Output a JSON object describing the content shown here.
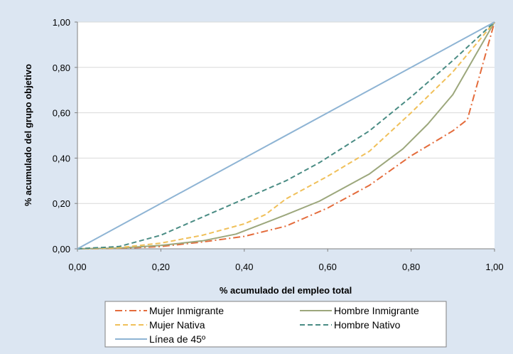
{
  "chart_data": {
    "type": "line",
    "title": "",
    "xlabel": "% acumulado del empleo total",
    "ylabel": "% acumulado del grupo objetivo",
    "xlim": [
      0,
      1
    ],
    "ylim": [
      0,
      1
    ],
    "x_ticks": [
      "0,00",
      "0,20",
      "0,40",
      "0,60",
      "0,80",
      "1,00"
    ],
    "y_ticks": [
      "0,00",
      "0,20",
      "0,40",
      "0,60",
      "0,80",
      "1,00"
    ],
    "grid": "horizontal",
    "legend_position": "bottom",
    "series": [
      {
        "name": "Mujer Inmigrante",
        "color": "#e46c3c",
        "dash": "dash-dot",
        "points": [
          [
            0,
            0
          ],
          [
            0.1,
            0.002
          ],
          [
            0.2,
            0.01
          ],
          [
            0.3,
            0.03
          ],
          [
            0.4,
            0.055
          ],
          [
            0.5,
            0.1
          ],
          [
            0.6,
            0.18
          ],
          [
            0.7,
            0.28
          ],
          [
            0.8,
            0.41
          ],
          [
            0.9,
            0.52
          ],
          [
            0.935,
            0.57
          ],
          [
            1,
            1
          ]
        ]
      },
      {
        "name": "Hombre Inmigrante",
        "color": "#9ca77c",
        "dash": "solid",
        "points": [
          [
            0,
            0
          ],
          [
            0.1,
            0.003
          ],
          [
            0.2,
            0.015
          ],
          [
            0.3,
            0.035
          ],
          [
            0.38,
            0.065
          ],
          [
            0.5,
            0.15
          ],
          [
            0.58,
            0.21
          ],
          [
            0.7,
            0.33
          ],
          [
            0.78,
            0.44
          ],
          [
            0.84,
            0.55
          ],
          [
            0.9,
            0.68
          ],
          [
            1,
            1
          ]
        ]
      },
      {
        "name": "Mujer Nativa",
        "color": "#f0c05a",
        "dash": "dashed",
        "points": [
          [
            0,
            0
          ],
          [
            0.1,
            0.005
          ],
          [
            0.2,
            0.025
          ],
          [
            0.3,
            0.06
          ],
          [
            0.4,
            0.11
          ],
          [
            0.45,
            0.15
          ],
          [
            0.5,
            0.22
          ],
          [
            0.6,
            0.32
          ],
          [
            0.7,
            0.43
          ],
          [
            0.8,
            0.6
          ],
          [
            0.9,
            0.78
          ],
          [
            1,
            1
          ]
        ]
      },
      {
        "name": "Hombre Nativo",
        "color": "#4a8c84",
        "dash": "dashed",
        "points": [
          [
            0,
            0
          ],
          [
            0.1,
            0.01
          ],
          [
            0.2,
            0.06
          ],
          [
            0.3,
            0.14
          ],
          [
            0.4,
            0.22
          ],
          [
            0.5,
            0.3
          ],
          [
            0.58,
            0.38
          ],
          [
            0.7,
            0.52
          ],
          [
            0.8,
            0.67
          ],
          [
            0.9,
            0.83
          ],
          [
            1,
            1
          ]
        ]
      },
      {
        "name": "Línea de 45º",
        "color": "#8eb4d4",
        "dash": "solid",
        "points": [
          [
            0,
            0
          ],
          [
            1,
            1
          ]
        ]
      }
    ]
  }
}
